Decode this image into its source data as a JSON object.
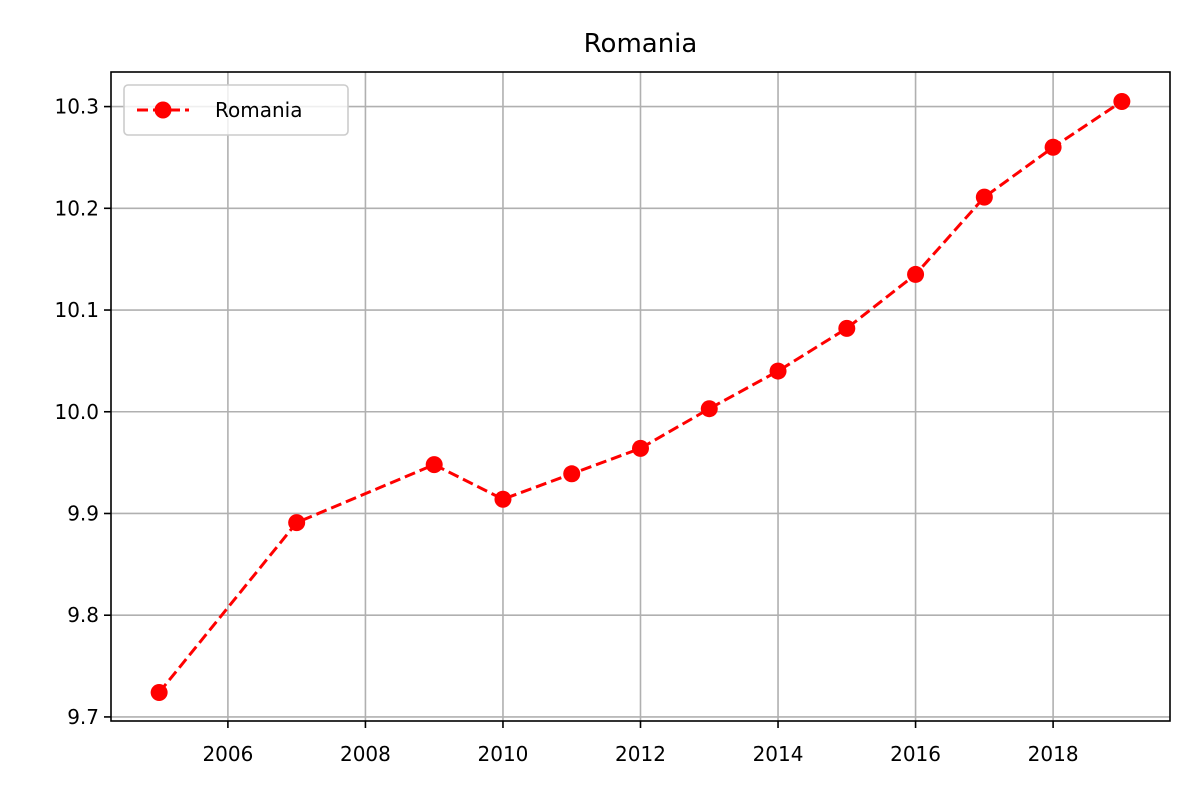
{
  "chart_data": {
    "type": "line",
    "title": "Romania",
    "xlabel": "",
    "ylabel": "",
    "x": [
      2005,
      2007,
      2009,
      2010,
      2011,
      2012,
      2013,
      2014,
      2015,
      2016,
      2017,
      2018,
      2019
    ],
    "series": [
      {
        "name": "Romania",
        "color": "#ff0000",
        "line_style": "dashed",
        "marker": "circle",
        "values": [
          9.724,
          9.891,
          9.948,
          9.914,
          9.939,
          9.964,
          10.003,
          10.04,
          10.082,
          10.135,
          10.211,
          10.26,
          10.305
        ]
      }
    ],
    "xlim": [
      2004.3,
      2019.7
    ],
    "ylim": [
      9.696,
      10.334
    ],
    "x_ticks": [
      "2006",
      "2008",
      "2010",
      "2012",
      "2014",
      "2016",
      "2018"
    ],
    "y_ticks": [
      "9.7",
      "9.8",
      "9.9",
      "10.0",
      "10.1",
      "10.2",
      "10.3"
    ],
    "grid": true,
    "legend_position": "top-left"
  }
}
